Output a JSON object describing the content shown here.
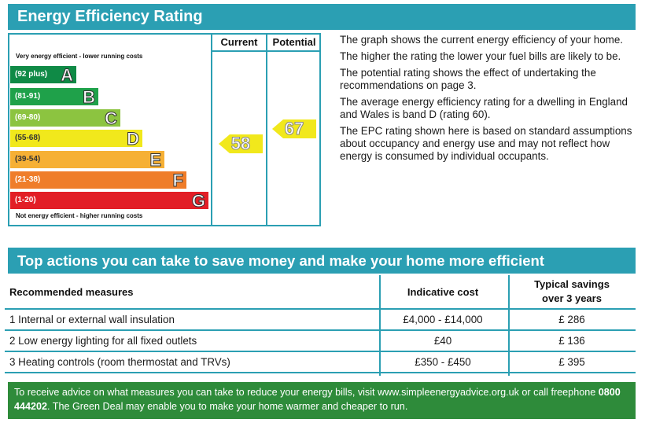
{
  "title": "Energy Efficiency Rating",
  "chart": {
    "top_note": "Very energy efficient - lower running costs",
    "bottom_note": "Not energy efficient - higher running costs",
    "columns": [
      "Current",
      "Potential"
    ],
    "bands": [
      {
        "range": "(92 plus)",
        "letter": "A",
        "color": "#0f8a46"
      },
      {
        "range": "(81-91)",
        "letter": "B",
        "color": "#1fa14a"
      },
      {
        "range": "(69-80)",
        "letter": "C",
        "color": "#8cc440"
      },
      {
        "range": "(55-68)",
        "letter": "D",
        "color": "#f1e81c"
      },
      {
        "range": "(39-54)",
        "letter": "E",
        "color": "#f6b035"
      },
      {
        "range": "(21-38)",
        "letter": "F",
        "color": "#ef7d2a"
      },
      {
        "range": "(1-20)",
        "letter": "G",
        "color": "#e21e26"
      }
    ],
    "current": "58",
    "potential": "67",
    "arrow_color": "#f1e81c"
  },
  "info": [
    "The graph shows the current energy efficiency of your home.",
    "The higher the rating the lower your fuel bills are likely to be.",
    "The potential rating shows the effect of undertaking the recommendations on page 3.",
    "The average energy efficiency rating for a dwelling in England and Wales is band D (rating 60).",
    "The EPC rating shown here is based on standard assumptions about occupancy and energy use and may not reflect how energy is consumed by individual occupants."
  ],
  "actions_title": "Top actions you can take to save money and make your home more efficient",
  "table": {
    "headers": {
      "measure": "Recommended measures",
      "cost": "Indicative cost",
      "savings_1": "Typical savings",
      "savings_2": "over 3 years"
    },
    "rows": [
      {
        "measure": "1  Internal or external wall insulation",
        "cost": "£4,000 - £14,000",
        "savings": "£ 286"
      },
      {
        "measure": "2  Low energy lighting for all fixed outlets",
        "cost": "£40",
        "savings": "£ 136"
      },
      {
        "measure": "3  Heating controls (room thermostat and TRVs)",
        "cost": "£350 - £450",
        "savings": "£ 395"
      }
    ]
  },
  "footer": {
    "text_1": "To receive advice on what measures you can take to reduce your energy bills, visit www.simpleenergyadvice.org.uk or call freephone ",
    "phone": "0800 444202",
    "text_2": ". The Green Deal may enable you to make your home warmer and cheaper to run."
  }
}
